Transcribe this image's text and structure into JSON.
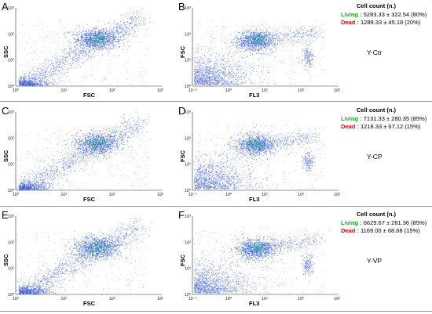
{
  "colors": {
    "living": "#1faa2c",
    "dead": "#e0141b",
    "dots": "#2a4fd6",
    "dense": "#2ecc71"
  },
  "info_title": "Cell count (n.)",
  "rows": [
    {
      "left_panel": {
        "letter": "A",
        "xlabel": "FSC",
        "ylabel": "SSC"
      },
      "right_panel": {
        "letter": "B",
        "xlabel": "FL3",
        "ylabel": "FSC"
      },
      "living_label": "Living :",
      "living_value": "5283.33 ± 322.54 (80%)",
      "dead_label": "Dead :",
      "dead_value": "1289.33 ± 45.18 (20%)",
      "sample": "Y-Ctr"
    },
    {
      "left_panel": {
        "letter": "C",
        "xlabel": "FSC",
        "ylabel": "SSC"
      },
      "right_panel": {
        "letter": "D",
        "xlabel": "FL3",
        "ylabel": "FSC"
      },
      "living_label": "Living :",
      "living_value": "7131.33 ± 280.35 (85%)",
      "dead_label": "Dead :",
      "dead_value": "1218.33 ± 67.12 (15%)",
      "sample": "Y-CP"
    },
    {
      "left_panel": {
        "letter": "E",
        "xlabel": "FSC",
        "ylabel": "SSC"
      },
      "right_panel": {
        "letter": "F",
        "xlabel": "FL3",
        "ylabel": "FSC"
      },
      "living_label": "Living :",
      "living_value": "6629.67 ± 261.36 (85%)",
      "dead_label": "Dead :",
      "dead_value": "1169.00 ± 68.68 (15%)",
      "sample": "Y-VP"
    }
  ],
  "ticks": {
    "left_x": [
      "10⁰",
      "10¹",
      "10²",
      "10³"
    ],
    "left_y": [
      "10³",
      "10²",
      "10¹",
      "10⁰"
    ],
    "right_x": [
      "10⁻¹",
      "10⁰",
      "10¹",
      "10²",
      "10³"
    ],
    "right_y": [
      "10³",
      "10²",
      "10¹",
      "10⁰"
    ]
  }
}
